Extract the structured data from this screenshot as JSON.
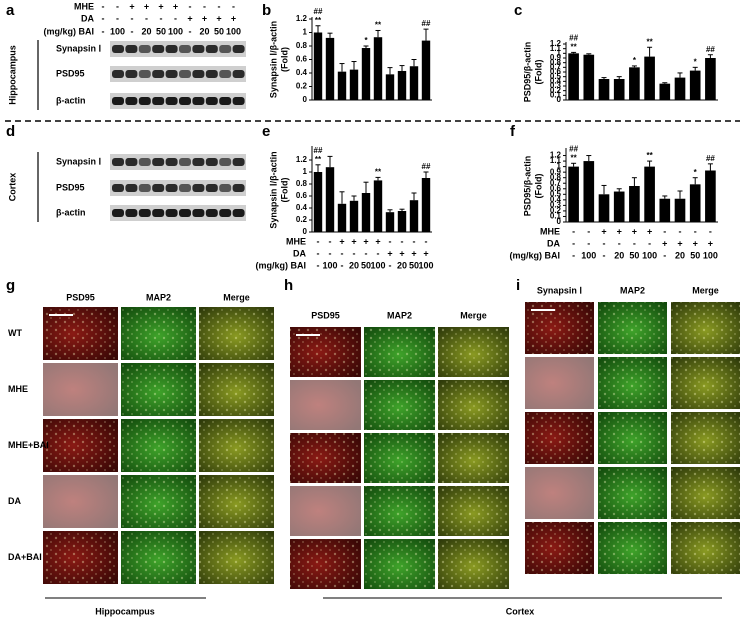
{
  "panel_letters": [
    "a",
    "b",
    "c",
    "d",
    "e",
    "f",
    "g",
    "h",
    "i"
  ],
  "blots": {
    "conditions": {
      "rows": [
        {
          "label": "MHE",
          "cells": [
            "-",
            "-",
            "+",
            "+",
            "+",
            "+",
            "-",
            "-",
            "-",
            "-"
          ]
        },
        {
          "label": "DA",
          "cells": [
            "-",
            "-",
            "-",
            "-",
            "-",
            "-",
            "+",
            "+",
            "+",
            "+"
          ]
        },
        {
          "label": "(mg/kg) BAI",
          "cells": [
            "-",
            "100",
            "-",
            "20",
            "50",
            "100",
            "-",
            "20",
            "50",
            "100"
          ]
        }
      ]
    },
    "hippocampus": {
      "region": "Hippocampus",
      "proteins": [
        "Synapsin Ⅰ",
        "PSD95",
        "β-actin"
      ]
    },
    "cortex": {
      "region": "Cortex",
      "proteins": [
        "Synapsin Ⅰ",
        "PSD95",
        "β-actin"
      ]
    }
  },
  "chart_data": [
    {
      "type": "bar",
      "color": "#000000",
      "y_label": [
        "Synapsin Ⅰ/β-actin",
        "(Fold)"
      ],
      "ylim": [
        0,
        1.2
      ],
      "yticks": [
        0,
        0.2,
        0.4,
        0.6,
        0.8,
        1,
        1.2
      ],
      "values": [
        1.0,
        0.92,
        0.42,
        0.45,
        0.77,
        0.93,
        0.38,
        0.43,
        0.5,
        0.88
      ],
      "errors": [
        0.1,
        0.07,
        0.12,
        0.12,
        0.03,
        0.1,
        0.1,
        0.08,
        0.1,
        0.17
      ],
      "significance": [
        [
          "**",
          "##"
        ],
        null,
        null,
        null,
        [
          "*"
        ],
        [
          "**"
        ],
        null,
        null,
        null,
        [
          "##"
        ]
      ]
    },
    {
      "type": "bar",
      "color": "#000000",
      "y_label": [
        "PSD95/β-actin",
        "(Fold)"
      ],
      "ylim": [
        0,
        1.2
      ],
      "yticks": [
        0,
        0.1,
        0.2,
        0.3,
        0.4,
        0.5,
        0.6,
        0.7,
        0.8,
        0.9,
        1,
        1.1,
        1.2
      ],
      "values": [
        1.0,
        0.97,
        0.45,
        0.45,
        0.7,
        0.93,
        0.35,
        0.48,
        0.63,
        0.9
      ],
      "errors": [
        0.02,
        0.02,
        0.03,
        0.05,
        0.03,
        0.2,
        0.02,
        0.1,
        0.07,
        0.07
      ],
      "significance": [
        [
          "**",
          "##"
        ],
        null,
        null,
        null,
        [
          "*"
        ],
        [
          "**"
        ],
        null,
        null,
        [
          "*"
        ],
        [
          "##"
        ]
      ]
    },
    {
      "type": "bar",
      "color": "#000000",
      "y_label": [
        "Synapsin Ⅰ/β-actin",
        "(Fold)"
      ],
      "ylim": [
        0,
        1.4
      ],
      "yticks": [
        0,
        0.2,
        0.4,
        0.6,
        0.8,
        1,
        1.2
      ],
      "values": [
        1.0,
        1.08,
        0.47,
        0.52,
        0.65,
        0.86,
        0.33,
        0.35,
        0.53,
        0.9
      ],
      "errors": [
        0.12,
        0.18,
        0.2,
        0.08,
        0.18,
        0.05,
        0.04,
        0.03,
        0.12,
        0.1
      ],
      "significance": [
        [
          "**",
          "##"
        ],
        null,
        null,
        null,
        null,
        [
          "**"
        ],
        null,
        null,
        null,
        [
          "##"
        ]
      ],
      "conditions": {
        "rows": [
          {
            "label": "MHE",
            "cells": [
              "-",
              "-",
              "+",
              "+",
              "+",
              "+",
              "-",
              "-",
              "-",
              "-"
            ]
          },
          {
            "label": "DA",
            "cells": [
              "-",
              "-",
              "-",
              "-",
              "-",
              "-",
              "+",
              "+",
              "+",
              "+"
            ]
          },
          {
            "label": "(mg/kg) BAI",
            "cells": [
              "-",
              "100",
              "-",
              "20",
              "50",
              "100",
              "-",
              "20",
              "50",
              "100"
            ]
          }
        ]
      }
    },
    {
      "type": "bar",
      "color": "#000000",
      "y_label": [
        "PSD95/β-actin",
        "(Fold)"
      ],
      "ylim": [
        0,
        1.3
      ],
      "yticks": [
        0,
        0.1,
        0.2,
        0.3,
        0.4,
        0.5,
        0.6,
        0.7,
        0.8,
        0.9,
        1,
        1.1,
        1.2
      ],
      "values": [
        1.0,
        1.1,
        0.5,
        0.55,
        0.65,
        1.0,
        0.42,
        0.42,
        0.68,
        0.93
      ],
      "errors": [
        0.06,
        0.1,
        0.16,
        0.05,
        0.15,
        0.1,
        0.05,
        0.14,
        0.12,
        0.12
      ],
      "significance": [
        [
          "**",
          "##"
        ],
        null,
        null,
        null,
        null,
        [
          "**"
        ],
        null,
        null,
        [
          "*"
        ],
        [
          "##"
        ]
      ],
      "conditions": {
        "rows": [
          {
            "label": "MHE",
            "cells": [
              "-",
              "-",
              "+",
              "+",
              "+",
              "+",
              "-",
              "-",
              "-",
              "-"
            ]
          },
          {
            "label": "DA",
            "cells": [
              "-",
              "-",
              "-",
              "-",
              "-",
              "-",
              "+",
              "+",
              "+",
              "+"
            ]
          },
          {
            "label": "(mg/kg) BAI",
            "cells": [
              "-",
              "100",
              "-",
              "20",
              "50",
              "100",
              "-",
              "20",
              "50",
              "100"
            ]
          }
        ]
      }
    }
  ],
  "microscopy": {
    "panels": [
      {
        "columns": [
          "PSD95",
          "MAP2",
          "Merge"
        ],
        "rows": [
          "WT",
          "MHE",
          "MHE+BAI",
          "DA",
          "DA+BAI"
        ]
      },
      {
        "columns": [
          "PSD95",
          "MAP2",
          "Merge"
        ]
      },
      {
        "columns": [
          "Synapsin Ⅰ",
          "MAP2",
          "Merge"
        ]
      }
    ],
    "footers": [
      "Hippocampus",
      "Cortex"
    ]
  }
}
